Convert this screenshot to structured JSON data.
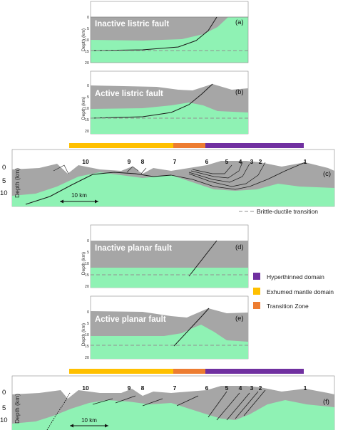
{
  "colors": {
    "crust_gray": "#a6a6a6",
    "mantle_green": "#8ff2b4",
    "hyperthinned": "#7030a0",
    "exhumed_mantle": "#ffc000",
    "transition_zone": "#ed7d31",
    "fault_line": "#1a1a1a",
    "dashed_line": "#909090"
  },
  "small_panels": {
    "axis_label": "Depth (km)",
    "ticks": [
      "0",
      "5",
      "10",
      "15",
      "20"
    ],
    "panels": [
      {
        "id": "a",
        "title": "Inactive listric fault",
        "letter": "(a)"
      },
      {
        "id": "b",
        "title": "Active listric fault",
        "letter": "(b)"
      },
      {
        "id": "d",
        "title": "Inactive planar fault",
        "letter": "(d)"
      },
      {
        "id": "e",
        "title": "Active planar fault",
        "letter": "(e)"
      }
    ]
  },
  "cross_sections": {
    "axis_label": "Depth (km)",
    "ticks": [
      "0",
      "5",
      "10"
    ],
    "fault_numbers": [
      "10",
      "9",
      "8",
      "7",
      "6",
      "5",
      "4",
      "3",
      "2",
      "1"
    ],
    "scale_label": "10 km",
    "panel_c_letter": "(c)",
    "panel_f_letter": "(f)"
  },
  "legend": {
    "dashed_label": "Brittle-ductile transition",
    "items": [
      {
        "label": "Hyperthinned domain",
        "color": "#7030a0"
      },
      {
        "label": "Exhumed mantle domain",
        "color": "#ffc000"
      },
      {
        "label": "Transition Zone",
        "color": "#ed7d31"
      }
    ]
  }
}
